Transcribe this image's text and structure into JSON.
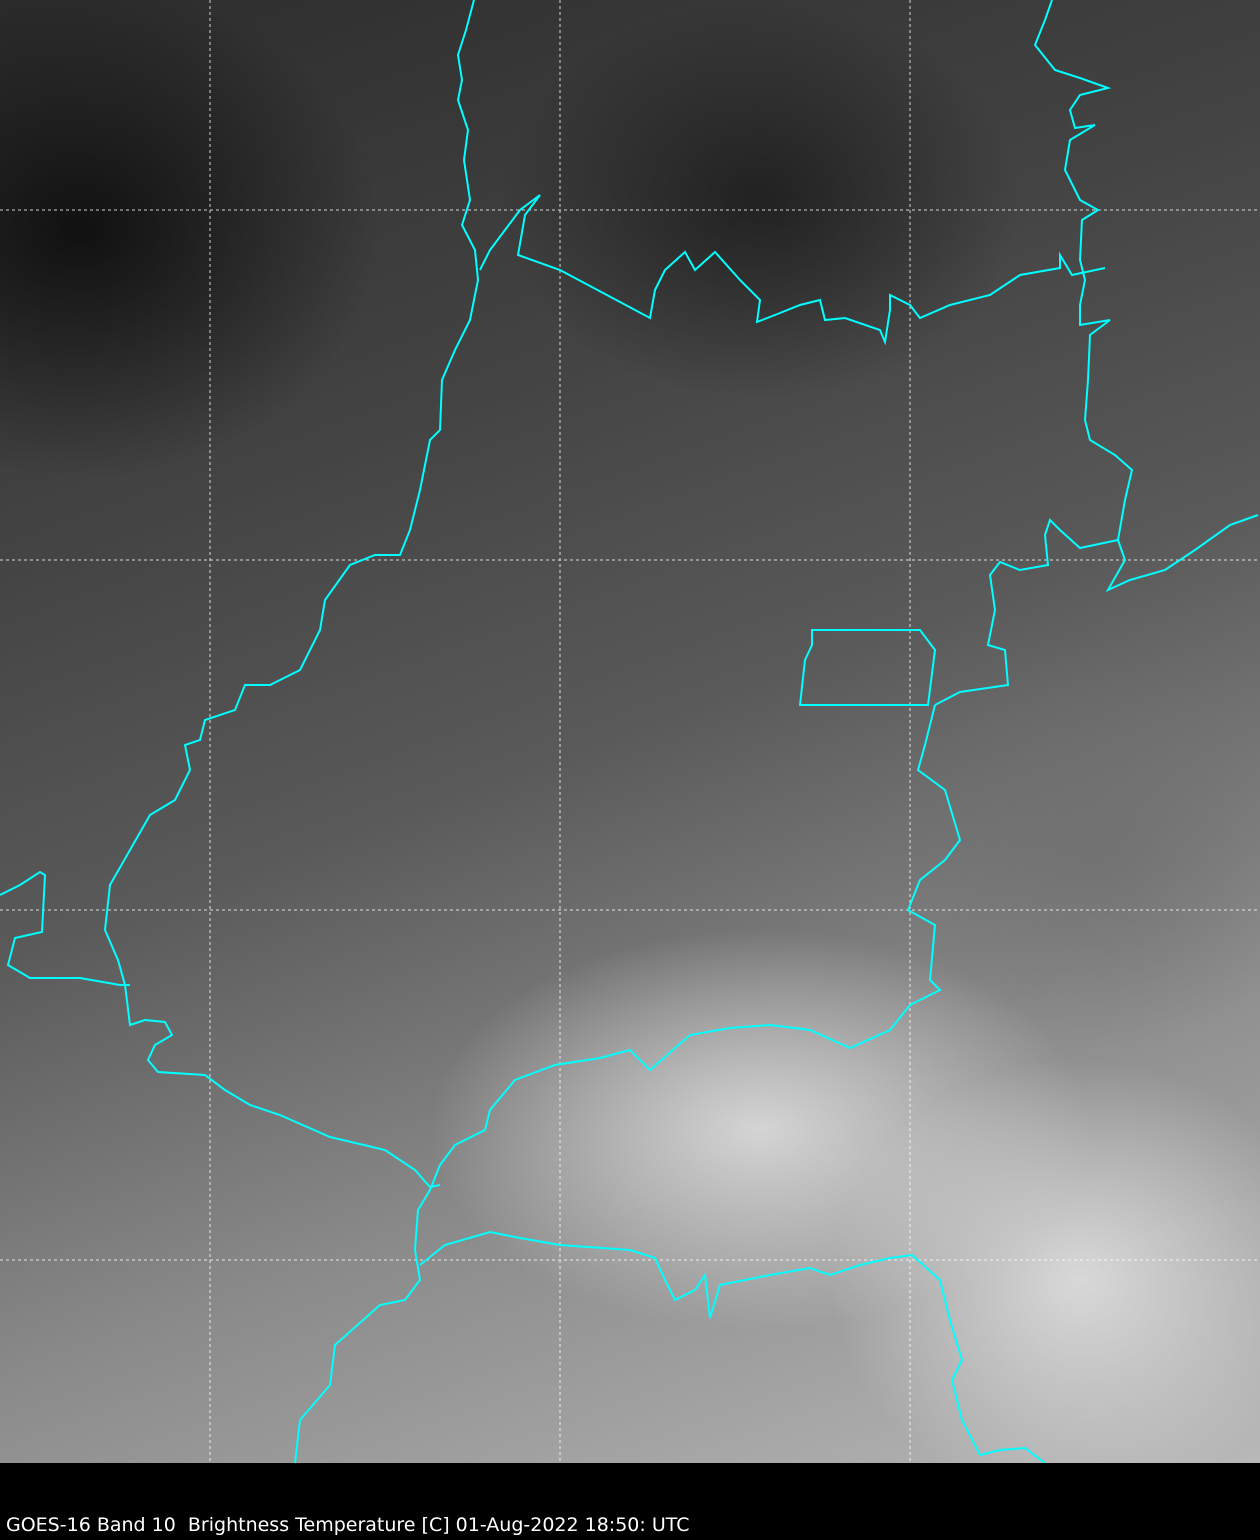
{
  "caption": "GOES-16 Band 10  Brightness Temperature [C] 01-Aug-2022 18:50: UTC",
  "colors": {
    "border": "#00ffff",
    "grid": "#ffffff",
    "background": "#000000"
  },
  "map": {
    "style": "grayscale infrared satellite imagery",
    "gridlines": true,
    "boundaries": "state/country borders"
  }
}
